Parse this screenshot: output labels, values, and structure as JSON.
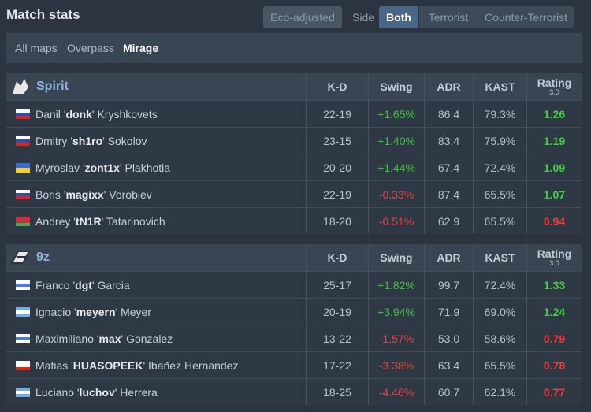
{
  "header": {
    "title": "Match stats",
    "eco_button": "Eco-adjusted",
    "side_label": "Side",
    "side_options": [
      "Both",
      "Terrorist",
      "Counter-Terrorist"
    ]
  },
  "map_tabs": [
    "All maps",
    "Overpass",
    "Mirage"
  ],
  "teams": [
    {
      "name": "Spirit",
      "columns": [
        "K-D",
        "Swing",
        "ADR",
        "KAST",
        "Rating"
      ],
      "rating_version": "3.0",
      "players": [
        {
          "first": "Danil '",
          "nick": "donk",
          "last": "' Kryshkovets",
          "kd": "22-19",
          "swing": "+1.65%",
          "adr": "86.4",
          "kast": "79.3%",
          "rating": "1.26"
        },
        {
          "first": "Dmitry '",
          "nick": "sh1ro",
          "last": "' Sokolov",
          "kd": "23-15",
          "swing": "+1.40%",
          "adr": "83.4",
          "kast": "75.9%",
          "rating": "1.19"
        },
        {
          "first": "Myroslav '",
          "nick": "zont1x",
          "last": "' Plakhotia",
          "kd": "20-20",
          "swing": "+1.44%",
          "adr": "67.4",
          "kast": "72.4%",
          "rating": "1.09"
        },
        {
          "first": "Boris '",
          "nick": "magixx",
          "last": "' Vorobiev",
          "kd": "22-19",
          "swing": "-0.33%",
          "adr": "87.4",
          "kast": "65.5%",
          "rating": "1.07"
        },
        {
          "first": "Andrey '",
          "nick": "tN1R",
          "last": "' Tatarinovich",
          "kd": "18-20",
          "swing": "-0.51%",
          "adr": "62.9",
          "kast": "65.5%",
          "rating": "0.94"
        }
      ]
    },
    {
      "name": "9z",
      "columns": [
        "K-D",
        "Swing",
        "ADR",
        "KAST",
        "Rating"
      ],
      "rating_version": "3.0",
      "players": [
        {
          "first": "Franco '",
          "nick": "dgt",
          "last": "' Garcia",
          "kd": "25-17",
          "swing": "+1.82%",
          "adr": "99.7",
          "kast": "72.4%",
          "rating": "1.33"
        },
        {
          "first": "Ignacio '",
          "nick": "meyern",
          "last": "' Meyer",
          "kd": "20-19",
          "swing": "+3.94%",
          "adr": "71.9",
          "kast": "69.0%",
          "rating": "1.24"
        },
        {
          "first": "Maximiliano '",
          "nick": "max",
          "last": "' Gonzalez",
          "kd": "13-22",
          "swing": "-1.57%",
          "adr": "53.0",
          "kast": "58.6%",
          "rating": "0.79"
        },
        {
          "first": "Matias '",
          "nick": "HUASOPEEK",
          "last": "' Ibañez Hernandez",
          "kd": "17-22",
          "swing": "-3.38%",
          "adr": "63.4",
          "kast": "65.5%",
          "rating": "0.78"
        },
        {
          "first": "Luciano '",
          "nick": "luchov",
          "last": "' Herrera",
          "kd": "18-25",
          "swing": "-4.46%",
          "adr": "60.7",
          "kast": "62.1%",
          "rating": "0.77"
        }
      ]
    }
  ]
}
